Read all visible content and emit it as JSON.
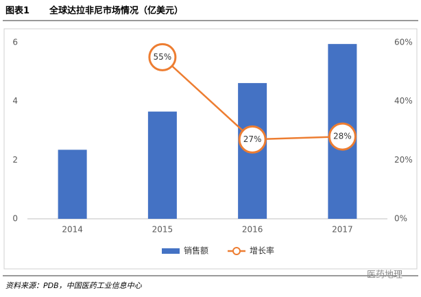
{
  "chart_data": {
    "type": "bar-line",
    "label": "图表1",
    "title": "全球达拉非尼市场情况（亿美元）",
    "categories": [
      "2014",
      "2015",
      "2016",
      "2017"
    ],
    "series": [
      {
        "name": "销售额",
        "type": "bar",
        "color": "#4472c4",
        "values": [
          2.35,
          3.65,
          4.62,
          5.95
        ]
      },
      {
        "name": "增长率",
        "type": "line",
        "color": "#ed7d31",
        "axis": "y2",
        "values": [
          null,
          55,
          27,
          28
        ],
        "value_labels": [
          null,
          "55%",
          "27%",
          "28%"
        ]
      }
    ],
    "ylim": [
      0,
      6
    ],
    "yticks": [
      0,
      2,
      4,
      6
    ],
    "y2lim": [
      0,
      60
    ],
    "y2ticks": [
      {
        "value": 0,
        "label": "0%"
      },
      {
        "value": 20,
        "label": "20%"
      },
      {
        "value": 40,
        "label": "40%"
      },
      {
        "value": 60,
        "label": "60%"
      }
    ],
    "grid": false,
    "legend": "bottom",
    "source": "资料来源：PDB，中国医药工业信息中心",
    "watermark": "医药地理"
  }
}
